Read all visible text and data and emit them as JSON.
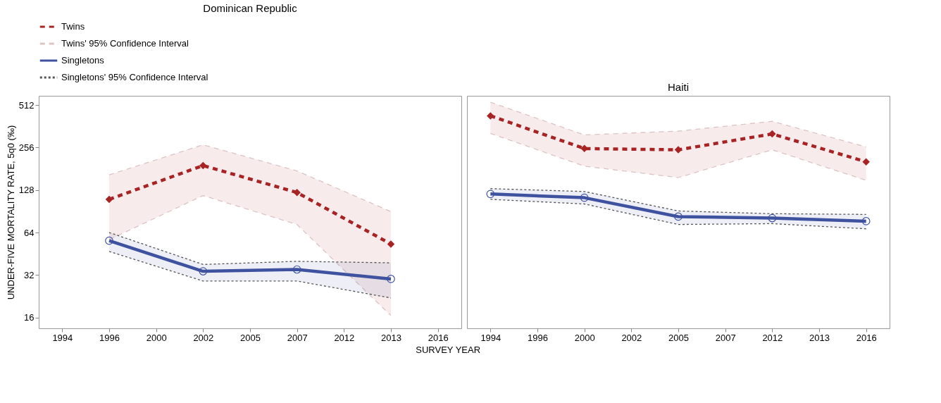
{
  "chart_data": [
    {
      "type": "line",
      "title": "Dominican Republic",
      "xlabel": "SURVEY YEAR",
      "ylabel": "UNDER-FIVE MORTALITY RATE, 5q0 (‰)",
      "log": true,
      "legend": "top left",
      "categories": [
        "1994",
        "1996",
        "2000",
        "2002",
        "2005",
        "2007",
        "2012",
        "2013",
        "2016"
      ],
      "ylim": [
        13.4,
        596
      ],
      "yticks": [
        16,
        32,
        64,
        128,
        256,
        512
      ],
      "series": [
        {
          "name": "Twins",
          "color": "#a82424",
          "line_style": "dashed",
          "marker": "diamond",
          "values": [
            null,
            110,
            null,
            191,
            null,
            123,
            null,
            53,
            null
          ],
          "lower": [
            null,
            57,
            null,
            117,
            null,
            73,
            null,
            16.5,
            null
          ],
          "upper": [
            null,
            164,
            null,
            268,
            null,
            175,
            null,
            90,
            null
          ]
        },
        {
          "name": "Twins' 95% Confidence Interval",
          "color": "#dcc4c4",
          "line_style": "dashed",
          "values": [
            null,
            164,
            null,
            268,
            null,
            175,
            null,
            90,
            null
          ]
        },
        {
          "color": "#dcc4c4",
          "line_style": "dashed",
          "values": [
            null,
            57,
            null,
            117,
            null,
            73,
            null,
            16.5,
            null
          ]
        },
        {
          "name": "Singletons",
          "color": "#3f52a0",
          "line_style": "solid",
          "marker": "circle",
          "values": [
            null,
            56,
            null,
            34,
            null,
            35,
            null,
            30,
            null
          ],
          "lower": [
            null,
            47,
            null,
            29,
            null,
            29,
            null,
            22,
            null
          ],
          "upper": [
            null,
            64,
            null,
            38,
            null,
            40,
            null,
            39,
            null
          ]
        },
        {
          "name": "Singletons' 95% Confidence Interval",
          "color": "#555555",
          "line_style": "dotted",
          "values": [
            null,
            64,
            null,
            38,
            null,
            40,
            null,
            39,
            null
          ]
        },
        {
          "color": "#555555",
          "line_style": "dotted",
          "values": [
            null,
            47,
            null,
            29,
            null,
            29,
            null,
            22,
            null
          ]
        }
      ]
    },
    {
      "type": "line",
      "title": "Haiti",
      "log": true,
      "tick_labels": "x",
      "categories": [
        "1994",
        "1996",
        "2000",
        "2002",
        "2005",
        "2007",
        "2012",
        "2013",
        "2016"
      ],
      "ylim": [
        13.4,
        596
      ],
      "yticks": [
        16,
        32,
        64,
        128,
        256,
        512
      ],
      "series": [
        {
          "color": "#a82424",
          "line_style": "dashed",
          "marker": "diamond",
          "values": [
            430,
            null,
            252,
            null,
            247,
            null,
            320,
            null,
            203
          ],
          "lower": [
            323,
            null,
            189,
            null,
            157,
            null,
            247,
            null,
            150
          ],
          "upper": [
            537,
            null,
            315,
            null,
            335,
            null,
            393,
            null,
            259
          ]
        },
        {
          "color": "#dcc4c4",
          "line_style": "dashed",
          "values": [
            537,
            null,
            315,
            null,
            335,
            null,
            393,
            null,
            259
          ]
        },
        {
          "color": "#dcc4c4",
          "line_style": "dashed",
          "values": [
            323,
            null,
            189,
            null,
            157,
            null,
            247,
            null,
            150
          ]
        },
        {
          "color": "#3f52a0",
          "line_style": "solid",
          "marker": "circle",
          "values": [
            120,
            null,
            113,
            null,
            83,
            null,
            81,
            null,
            77
          ],
          "lower": [
            110,
            null,
            102,
            null,
            73,
            null,
            74,
            null,
            68
          ],
          "upper": [
            131,
            null,
            125,
            null,
            91,
            null,
            87,
            null,
            86
          ]
        },
        {
          "color": "#555555",
          "line_style": "dotted",
          "values": [
            131,
            null,
            125,
            null,
            91,
            null,
            87,
            null,
            86
          ]
        },
        {
          "color": "#555555",
          "line_style": "dotted",
          "values": [
            110,
            null,
            102,
            null,
            73,
            null,
            74,
            null,
            68
          ]
        }
      ]
    }
  ]
}
